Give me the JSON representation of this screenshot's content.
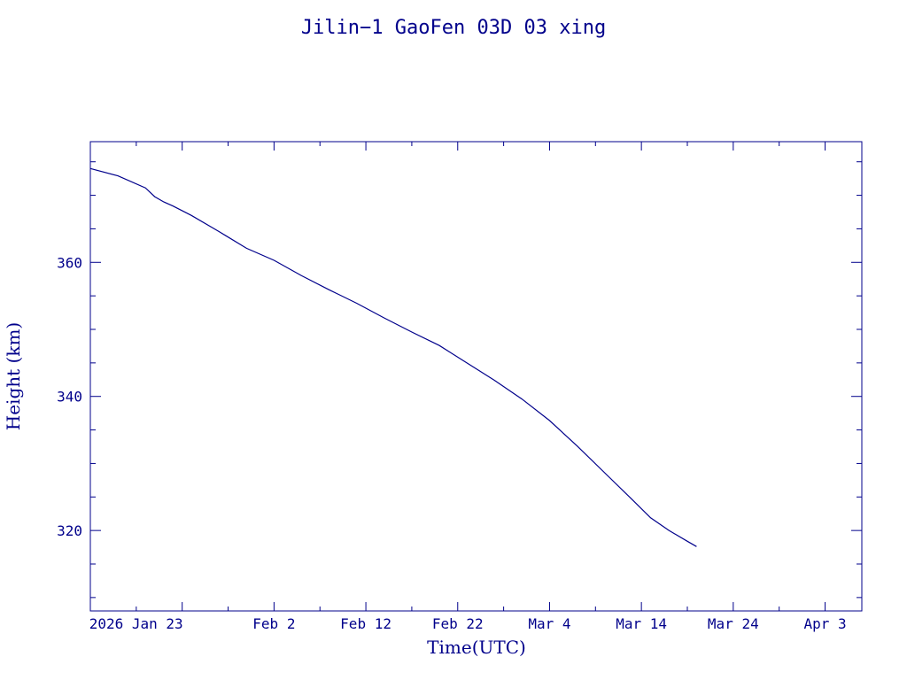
{
  "colors": {
    "ink": "#00008b",
    "background": "#ffffff"
  },
  "chart_data": {
    "type": "line",
    "title": "Jilin−1 GaoFen 03D 03 xing",
    "xlabel": "Time(UTC)",
    "ylabel": "Height (km)",
    "x_axis_type": "date",
    "xlim": [
      "2026-01-13T00:00",
      "2026-04-07T00:00"
    ],
    "ylim": [
      308,
      378
    ],
    "grid": false,
    "x_tick_labels": [
      {
        "label": "2026 Jan 23",
        "date": "2026-01-23"
      },
      {
        "label": "Feb  2",
        "date": "2026-02-02"
      },
      {
        "label": "Feb 12",
        "date": "2026-02-12"
      },
      {
        "label": "Feb 22",
        "date": "2026-02-22"
      },
      {
        "label": "Mar  4",
        "date": "2026-03-04"
      },
      {
        "label": "Mar 14",
        "date": "2026-03-14"
      },
      {
        "label": "Mar 24",
        "date": "2026-03-24"
      },
      {
        "label": "Apr  3",
        "date": "2026-04-03"
      }
    ],
    "x_minor_tick_dates": [
      "2026-01-18",
      "2026-01-28",
      "2026-02-07",
      "2026-02-17",
      "2026-02-27",
      "2026-03-09",
      "2026-03-19",
      "2026-03-29"
    ],
    "y_major_ticks": [
      320,
      340,
      360
    ],
    "y_minor_ticks": [
      310,
      315,
      325,
      330,
      335,
      345,
      350,
      355,
      365,
      370,
      375
    ],
    "series": [
      {
        "x": [
          "2026-01-13",
          "2026-01-16",
          "2026-01-19",
          "2026-01-20",
          "2026-01-21",
          "2026-01-22",
          "2026-01-24",
          "2026-01-27",
          "2026-01-30",
          "2026-02-02",
          "2026-02-05",
          "2026-02-08",
          "2026-02-11",
          "2026-02-14",
          "2026-02-17",
          "2026-02-20",
          "2026-02-23",
          "2026-02-26",
          "2026-03-01",
          "2026-03-04",
          "2026-03-07",
          "2026-03-10",
          "2026-03-13",
          "2026-03-15",
          "2026-03-17",
          "2026-03-19",
          "2026-03-20"
        ],
        "y": [
          374.0,
          372.9,
          371.1,
          369.8,
          369.0,
          368.4,
          367.0,
          364.6,
          362.1,
          360.3,
          358.0,
          355.9,
          353.9,
          351.7,
          349.6,
          347.6,
          345.0,
          342.4,
          339.6,
          336.4,
          332.6,
          328.6,
          324.6,
          321.9,
          320.0,
          318.4,
          317.6
        ]
      }
    ]
  }
}
